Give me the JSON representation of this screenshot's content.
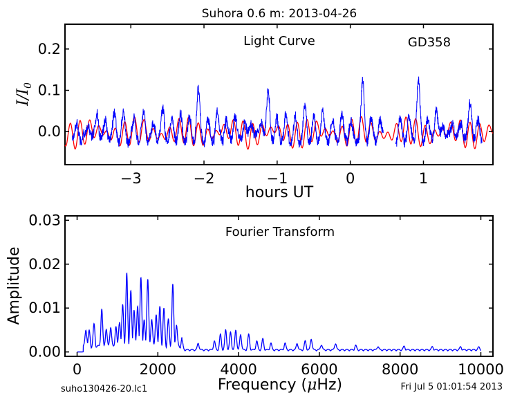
{
  "title": "Suhora 0.6 m:  2013-04-26",
  "footer": {
    "filename": "suho130426-20.lc1",
    "timestamp": "Fri Jul  5 01:01:54 2013"
  },
  "colors": {
    "observed": "#0000ff",
    "model": "#ff0000",
    "axes": "#000000"
  },
  "chart_data": [
    {
      "type": "line",
      "annotation": "Light Curve",
      "target": "GD358",
      "xlabel": "hours UT",
      "ylabel": "I/I0",
      "ylabel_main": "I",
      "ylabel_sub": "0",
      "xlim": [
        -3.9,
        1.95
      ],
      "ylim": [
        -0.08,
        0.26
      ],
      "xticks": [
        -3,
        -2,
        -1,
        0,
        1
      ],
      "xtick_labels": [
        "−3",
        "−2",
        "−1",
        "0",
        "1"
      ],
      "yticks": [
        0.0,
        0.1,
        0.2
      ],
      "ytick_labels": [
        "0.0",
        "0.1",
        "0.2"
      ],
      "grid": false,
      "series": [
        {
          "role": "observed",
          "x_start": -3.8,
          "x_end": 1.8,
          "peaks": [
            [
              -3.73,
              0.025
            ],
            [
              -3.58,
              0.032
            ],
            [
              -3.46,
              0.055
            ],
            [
              -3.34,
              0.03
            ],
            [
              -3.22,
              0.045
            ],
            [
              -3.1,
              0.04
            ],
            [
              -2.95,
              0.035
            ],
            [
              -2.82,
              0.05
            ],
            [
              -2.68,
              0.03
            ],
            [
              -2.56,
              0.06
            ],
            [
              -2.43,
              0.03
            ],
            [
              -2.32,
              0.038
            ],
            [
              -2.2,
              0.03
            ],
            [
              -2.08,
              0.1
            ],
            [
              -1.95,
              0.025
            ],
            [
              -1.82,
              0.05
            ],
            [
              -1.7,
              0.03
            ],
            [
              -1.58,
              0.045
            ],
            [
              -1.45,
              0.03
            ],
            [
              -1.35,
              0.035
            ],
            [
              -1.22,
              0.04
            ],
            [
              -1.12,
              0.105
            ],
            [
              -1.0,
              0.03
            ],
            [
              -0.88,
              0.04
            ],
            [
              -0.75,
              0.03
            ],
            [
              -0.62,
              0.06
            ],
            [
              -0.5,
              0.035
            ],
            [
              -0.38,
              0.045
            ],
            [
              -0.25,
              0.03
            ],
            [
              -0.12,
              0.04
            ],
            [
              0.0,
              0.03
            ],
            [
              0.17,
              0.12
            ],
            [
              0.28,
              0.03
            ],
            [
              0.4,
              0.03
            ],
            [
              0.68,
              0.03
            ],
            [
              0.8,
              0.035
            ],
            [
              0.93,
              0.125
            ],
            [
              1.05,
              0.03
            ],
            [
              1.17,
              0.06
            ],
            [
              1.27,
              0.03
            ],
            [
              1.4,
              0.035
            ],
            [
              1.52,
              0.03
            ],
            [
              1.64,
              0.075
            ],
            [
              1.75,
              0.025
            ]
          ],
          "gap": [
            0.45,
            0.62
          ],
          "min_value": -0.05
        },
        {
          "role": "model",
          "x_start": -3.9,
          "x_end": 1.95,
          "amplitude": 0.03,
          "min_value": -0.045
        }
      ]
    },
    {
      "type": "line",
      "annotation": "Fourier Transform",
      "xlabel": "Frequency (μHz)",
      "xlabel_prefix": "Frequency (",
      "xlabel_mu": "μ",
      "xlabel_suffix": "Hz)",
      "ylabel": "Amplitude",
      "xlim": [
        -300,
        10300
      ],
      "ylim": [
        -0.001,
        0.031
      ],
      "xticks": [
        0,
        2000,
        4000,
        6000,
        8000,
        10000
      ],
      "xtick_labels": [
        "0",
        "2000",
        "4000",
        "6000",
        "8000",
        "10000"
      ],
      "yticks": [
        0.0,
        0.01,
        0.02,
        0.03
      ],
      "ytick_labels": [
        "0.00",
        "0.01",
        "0.02",
        "0.03"
      ],
      "grid": false,
      "series": [
        {
          "role": "observed",
          "x_range": [
            0,
            10000
          ],
          "peaks": [
            [
              220,
              0.004
            ],
            [
              300,
              0.0035
            ],
            [
              420,
              0.005
            ],
            [
              610,
              0.0085
            ],
            [
              720,
              0.004
            ],
            [
              830,
              0.0045
            ],
            [
              960,
              0.0045
            ],
            [
              1050,
              0.006
            ],
            [
              1130,
              0.0095
            ],
            [
              1230,
              0.0165
            ],
            [
              1330,
              0.0125
            ],
            [
              1410,
              0.0085
            ],
            [
              1500,
              0.0095
            ],
            [
              1580,
              0.0155
            ],
            [
              1660,
              0.006
            ],
            [
              1750,
              0.0158
            ],
            [
              1850,
              0.0065
            ],
            [
              1960,
              0.0075
            ],
            [
              2050,
              0.009
            ],
            [
              2150,
              0.0085
            ],
            [
              2260,
              0.006
            ],
            [
              2370,
              0.014
            ],
            [
              2460,
              0.005
            ],
            [
              2600,
              0.002
            ],
            [
              3000,
              0.0015
            ],
            [
              3400,
              0.002
            ],
            [
              3550,
              0.0035
            ],
            [
              3680,
              0.0045
            ],
            [
              3800,
              0.004
            ],
            [
              3930,
              0.0045
            ],
            [
              4050,
              0.0035
            ],
            [
              4250,
              0.0035
            ],
            [
              4450,
              0.002
            ],
            [
              4600,
              0.0025
            ],
            [
              4800,
              0.0015
            ],
            [
              5150,
              0.0015
            ],
            [
              5450,
              0.0015
            ],
            [
              5650,
              0.002
            ],
            [
              5800,
              0.0025
            ],
            [
              6050,
              0.0012
            ],
            [
              6400,
              0.0015
            ],
            [
              6900,
              0.001
            ],
            [
              7450,
              0.0008
            ],
            [
              8100,
              0.0008
            ],
            [
              8800,
              0.0007
            ],
            [
              9500,
              0.0007
            ],
            [
              9950,
              0.0006
            ]
          ]
        }
      ]
    }
  ]
}
